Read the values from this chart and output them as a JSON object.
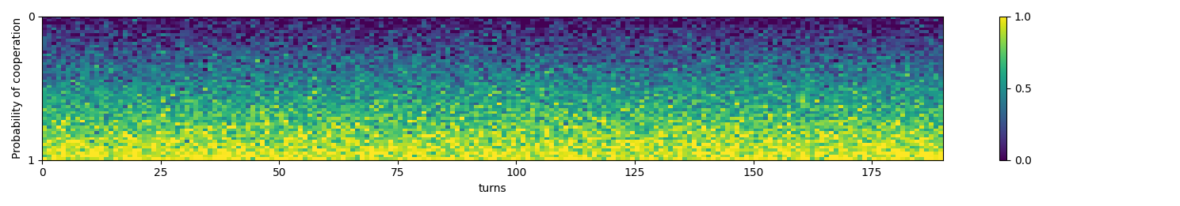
{
  "nrows": 50,
  "ncols": 190,
  "seed": 42,
  "xlabel": "turns",
  "ylabel": "Probability of cooperation",
  "xticks": [
    0,
    25,
    50,
    75,
    100,
    125,
    150,
    175
  ],
  "yticks": [
    0,
    1
  ],
  "cmap": "viridis",
  "vmin": 0.0,
  "vmax": 1.0,
  "colorbar_ticks": [
    0.0,
    0.5,
    1.0
  ],
  "colorbar_labels": [
    "0.0",
    "0.5",
    "1.0"
  ],
  "figsize": [
    14.89,
    2.61
  ],
  "dpi": 100,
  "noise_scale": 0.12,
  "row_mean_min": 0.03,
  "row_mean_max": 0.97
}
